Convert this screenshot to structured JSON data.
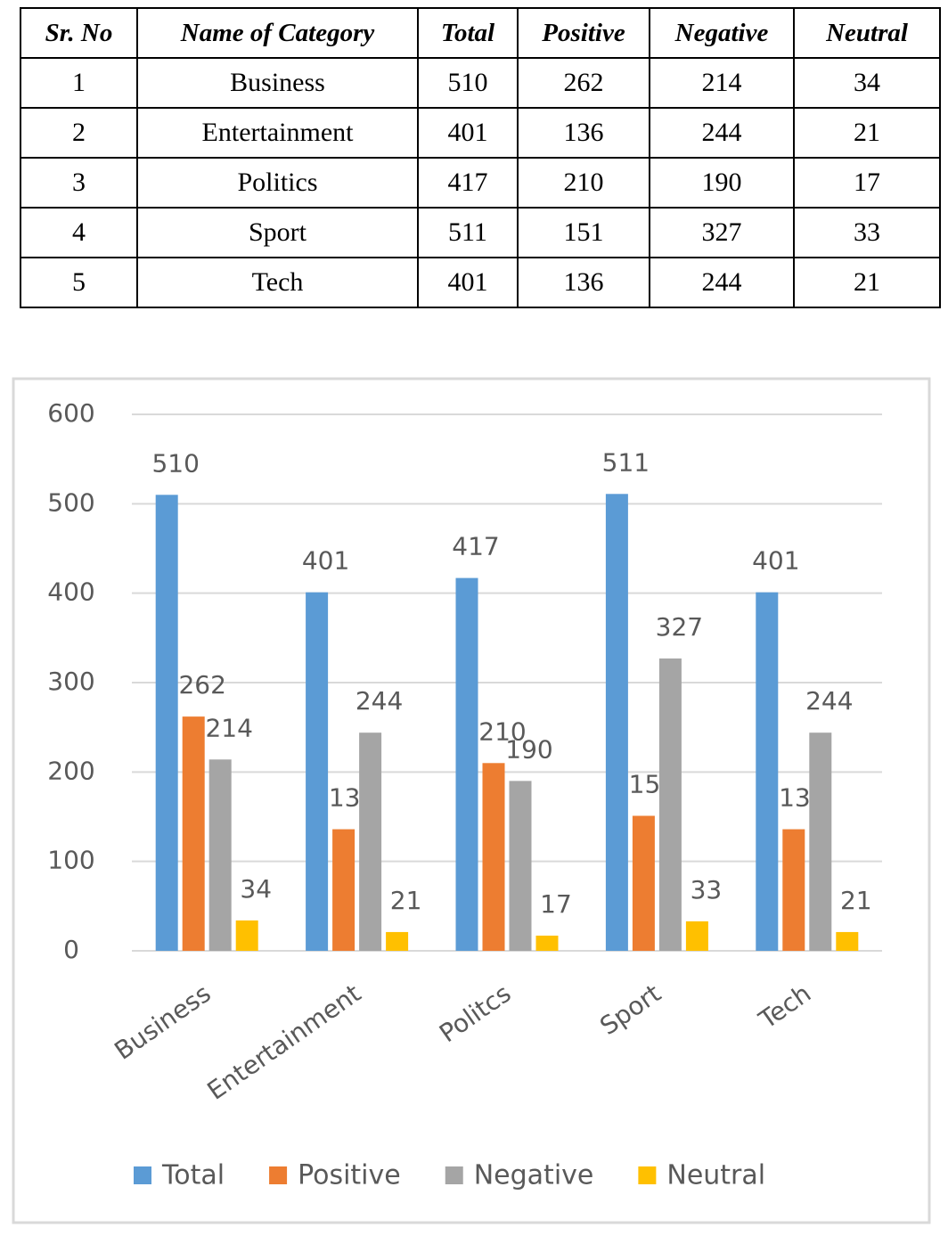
{
  "table": {
    "header": [
      "Sr. No",
      "Name of Category",
      "Total",
      "Positive",
      "Negative",
      "Neutral"
    ],
    "rows": [
      [
        1,
        "Business",
        510,
        262,
        214,
        34
      ],
      [
        2,
        "Entertainment",
        401,
        136,
        244,
        21
      ],
      [
        3,
        "Politics",
        417,
        210,
        190,
        17
      ],
      [
        4,
        "Sport",
        511,
        151,
        327,
        33
      ],
      [
        5,
        "Tech",
        401,
        136,
        244,
        21
      ]
    ]
  },
  "chart_data": {
    "type": "bar",
    "categories": [
      "Business",
      "Entertainment",
      "Politcs",
      "Sport",
      "Tech"
    ],
    "series": [
      {
        "name": "Total",
        "color": "#5b9bd5",
        "values": [
          510,
          401,
          417,
          511,
          401
        ]
      },
      {
        "name": "Positive",
        "color": "#ed7d31",
        "values": [
          262,
          136,
          210,
          151,
          136
        ]
      },
      {
        "name": "Negative",
        "color": "#a5a5a5",
        "values": [
          214,
          244,
          190,
          327,
          244
        ]
      },
      {
        "name": "Neutral",
        "color": "#ffc000",
        "values": [
          34,
          21,
          17,
          33,
          21
        ]
      }
    ],
    "ylim": [
      0,
      600
    ],
    "yticks": [
      0,
      100,
      200,
      300,
      400,
      500,
      600
    ],
    "grid": true,
    "legend": "bottom"
  }
}
